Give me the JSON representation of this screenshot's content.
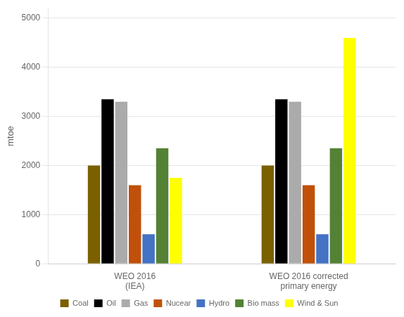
{
  "chart_data": {
    "type": "bar",
    "categories": [
      "WEO 2016\n(IEA)",
      "WEO 2016 corrected\nprimary energy"
    ],
    "series": [
      {
        "name": "Coal",
        "color": "#7B6000",
        "values": [
          2000,
          2000
        ]
      },
      {
        "name": "Oil",
        "color": "#000000",
        "values": [
          3350,
          3350
        ]
      },
      {
        "name": "Gas",
        "color": "#ABABAB",
        "values": [
          3300,
          3300
        ]
      },
      {
        "name": "Nucear",
        "color": "#C0500A",
        "values": [
          1600,
          1600
        ]
      },
      {
        "name": "Hydro",
        "color": "#4472C4",
        "values": [
          600,
          600
        ]
      },
      {
        "name": "Bio mass",
        "color": "#548235",
        "values": [
          2350,
          2350
        ]
      },
      {
        "name": "Wind & Sun",
        "color": "#FFFF00",
        "values": [
          1750,
          4600
        ]
      }
    ],
    "ylabel": "mtoe",
    "ylim": [
      0,
      5200
    ],
    "yticks": [
      0,
      1000,
      2000,
      3000,
      4000,
      5000
    ],
    "grid": true,
    "legend": "bottom"
  }
}
